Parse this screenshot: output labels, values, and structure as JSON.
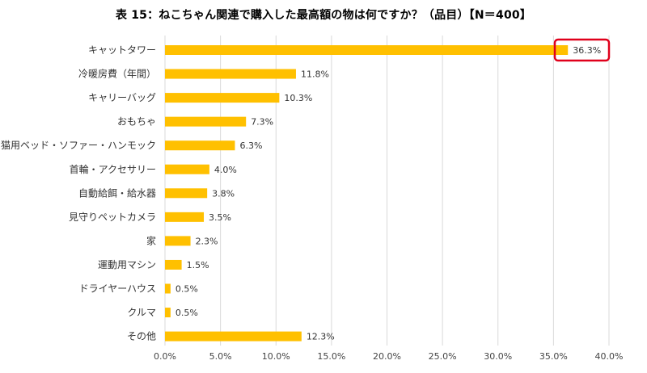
{
  "chart_data": {
    "type": "bar",
    "orientation": "horizontal",
    "title": "表 15：ねこちゃん関連で購入した最高額の物は何ですか？（品目）【N＝400】",
    "categories": [
      "キャットタワー",
      "冷暖房費（年間）",
      "キャリーバッグ",
      "おもちゃ",
      "猫用ベッド・ソファー・ハンモック",
      "首輪・アクセサリー",
      "自動給餌・給水器",
      "見守りペットカメラ",
      "家",
      "運動用マシン",
      "ドライヤーハウス",
      "クルマ",
      "その他"
    ],
    "values": [
      36.3,
      11.8,
      10.3,
      7.3,
      6.3,
      4.0,
      3.8,
      3.5,
      2.3,
      1.5,
      0.5,
      0.5,
      12.3
    ],
    "value_labels": [
      "36.3%",
      "11.8%",
      "10.3%",
      "7.3%",
      "6.3%",
      "4.0%",
      "3.8%",
      "3.5%",
      "2.3%",
      "1.5%",
      "0.5%",
      "0.5%",
      "12.3%"
    ],
    "xlim": [
      0,
      40
    ],
    "xticks": [
      "0.0%",
      "5.0%",
      "10.0%",
      "15.0%",
      "20.0%",
      "25.0%",
      "30.0%",
      "35.0%",
      "40.0%"
    ],
    "xlabel": "",
    "ylabel": "",
    "grid": "vertical",
    "bar_color": "#ffc000",
    "grid_color": "#d9d9d9",
    "highlight_color": "#e0001b",
    "highlighted_category": "キャットタワー"
  }
}
